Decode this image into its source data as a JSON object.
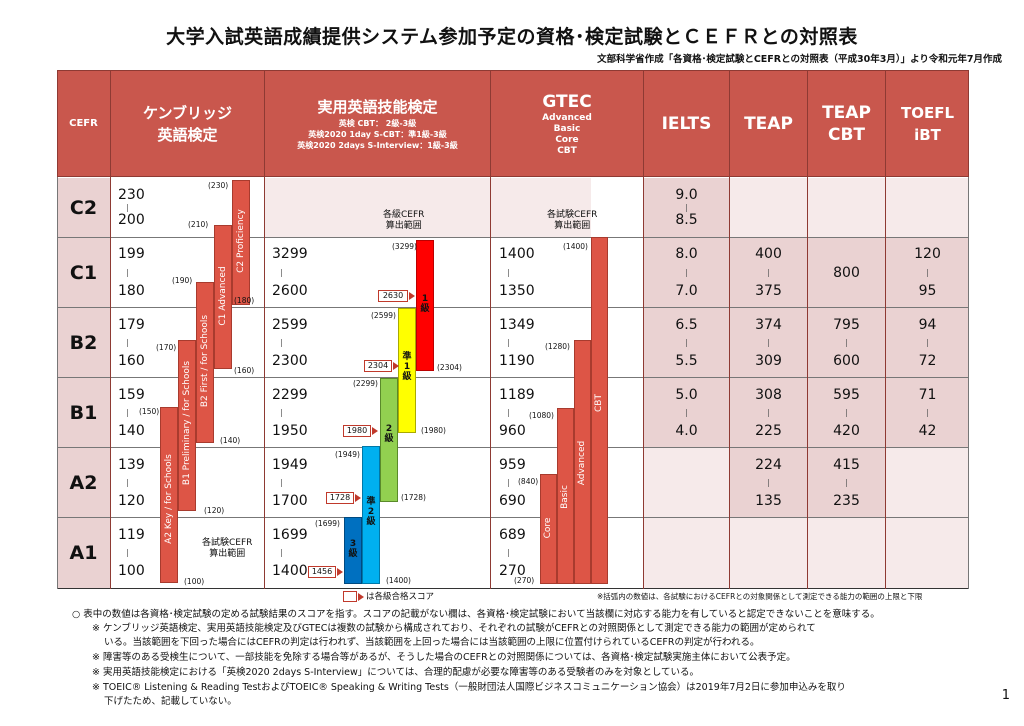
{
  "title": "大学入試英語成績提供システム参加予定の資格･検定試験とＣＥＦＲとの対照表",
  "subtitle": "文部科学省作成「各資格･検定試験とCEFRとの対照表（平成30年3月）」より令和元年7月作成",
  "header": {
    "cefr": "CEFR",
    "cambridge": [
      "ケンブリッジ",
      "英語検定"
    ],
    "eiken_title": "実用英語技能検定",
    "eiken_sub": [
      "英検 CBT： 2級-3級",
      "英検2020 1day S-CBT：準1級-3級",
      "英検2020 2days S-Interview：1級-3級"
    ],
    "gtec_title": "GTEC",
    "gtec_sub": [
      "Advanced",
      "Basic",
      "Core",
      "CBT"
    ],
    "ielts": "IELTS",
    "teap": "TEAP",
    "teapcbt": [
      "TEAP",
      "CBT"
    ],
    "toefl": [
      "TOEFL",
      "iBT"
    ]
  },
  "levels": [
    "C2",
    "C1",
    "B2",
    "B1",
    "A2",
    "A1"
  ],
  "scores": {
    "cambridge": [
      [
        "230",
        "200"
      ],
      [
        "199",
        "180"
      ],
      [
        "179",
        "160"
      ],
      [
        "159",
        "140"
      ],
      [
        "139",
        "120"
      ],
      [
        "119",
        "100"
      ]
    ],
    "eiken": [
      null,
      [
        "3299",
        "2600"
      ],
      [
        "2599",
        "2300"
      ],
      [
        "2299",
        "1950"
      ],
      [
        "1949",
        "1700"
      ],
      [
        "1699",
        "1400"
      ]
    ],
    "gtec": [
      null,
      [
        "1400",
        "1350"
      ],
      [
        "1349",
        "1190"
      ],
      [
        "1189",
        "960"
      ],
      [
        "959",
        "690"
      ],
      [
        "689",
        "270"
      ]
    ],
    "ielts": [
      [
        "9.0",
        "8.5"
      ],
      [
        "8.0",
        "7.0"
      ],
      [
        "6.5",
        "5.5"
      ],
      [
        "5.0",
        "4.0"
      ],
      null,
      null
    ],
    "teap": [
      null,
      [
        "400",
        "375"
      ],
      [
        "374",
        "309"
      ],
      [
        "308",
        "225"
      ],
      [
        "224",
        "135"
      ],
      null
    ],
    "teapcbt": [
      null,
      [
        "800",
        ""
      ],
      [
        "795",
        "600"
      ],
      [
        "595",
        "420"
      ],
      [
        "415",
        "235"
      ],
      null
    ],
    "toefl": [
      null,
      [
        "120",
        "95"
      ],
      [
        "94",
        "72"
      ],
      [
        "71",
        "42"
      ],
      null,
      null
    ]
  },
  "cambridge_bars": [
    {
      "label": "C2 Proficiency",
      "top": "(230)",
      "bottom": "(180)"
    },
    {
      "label": "C1 Advanced",
      "top": "(210)",
      "bottom": "(160)"
    },
    {
      "label": "B2 First / for Schools",
      "top": "(190)",
      "bottom": "(140)"
    },
    {
      "label": "B1 Preliminary / for Schools",
      "top": "(170)",
      "bottom": "(120)"
    },
    {
      "label": "A2 Key / for Schools",
      "top": "(150)",
      "bottom": "(100)"
    }
  ],
  "cambridge_note": [
    "各試験CEFR",
    "算出範囲"
  ],
  "eiken_note": [
    "各級CEFR",
    "算出範囲"
  ],
  "eiken_grades": {
    "g1": {
      "label": "1級",
      "top": "(3299)",
      "bottom": "(2304)",
      "pass": "2630"
    },
    "gp1": {
      "label": "準1級",
      "top": "(2599)",
      "bottom": "(1980)",
      "pass": "2304"
    },
    "g2": {
      "label": "2級",
      "top": "(2299)",
      "bottom": "(1728)",
      "pass": "1980"
    },
    "gp2": {
      "label": "準2級",
      "top": "(1949)",
      "bottom": "(1400)",
      "pass": "1728"
    },
    "g3": {
      "label": "3級",
      "top": "(1699)",
      "pass": "1456"
    }
  },
  "gtec_note": [
    "各試験CEFR",
    "算出範囲"
  ],
  "gtec_bars": [
    {
      "label": "CBT",
      "top": "(1400)"
    },
    {
      "label": "Advanced",
      "top": "(1280)"
    },
    {
      "label": "Basic",
      "top": "(1080)"
    },
    {
      "label": "Core",
      "top": "(840)",
      "bottom": "(270)"
    }
  ],
  "legend_pass": "は各級合格スコア",
  "legend_note": "※括弧内の数値は、各試験におけるCEFRとの対象関係として測定できる能力の範囲の上限と下限",
  "footnotes": [
    "○ 表中の数値は各資格･検定試験の定める試験結果のスコアを指す。スコアの記載がない欄は、各資格･検定試験において当該欄に対応する能力を有していると認定できないことを意味する。",
    "※ ケンブリッジ英語検定、実用英語技能検定及びGTECは複数の試験から構成されており、それぞれの試験がCEFRとの対照関係として測定できる能力の範囲が定められて",
    "いる。当該範囲を下回った場合にはCEFRの判定は行われず、当該範囲を上回った場合には当該範囲の上限に位置付けられているCEFRの判定が行われる。",
    "※ 障害等のある受検生について、一部技能を免除する場合等があるが、そうした場合のCEFRとの対照関係については、各資格･検定試験実施主体において公表予定。",
    "※ 実用英語技能検定における「英検2020 2days S-Interview」については、合理的配慮が必要な障害等のある受験者のみを対象としている。",
    "※ TOEIC® Listening & Reading TestおよびTOEIC® Speaking & Writing Tests（一般財団法人国際ビジネスコミュニケーション協会）は2019年7月2日に参加申込みを取り",
    "下げたため、記載していない。"
  ],
  "page_number": "1",
  "colors": {
    "header": "#c9574d",
    "row_dark": "#ead2d2",
    "row_light": "#f6eaea",
    "bar_red": "#dd5546",
    "grade1": "#ff0000",
    "gradep1": "#ffff00",
    "grade2": "#92d050",
    "gradep2": "#00b0f0",
    "grade3": "#0070c0"
  }
}
